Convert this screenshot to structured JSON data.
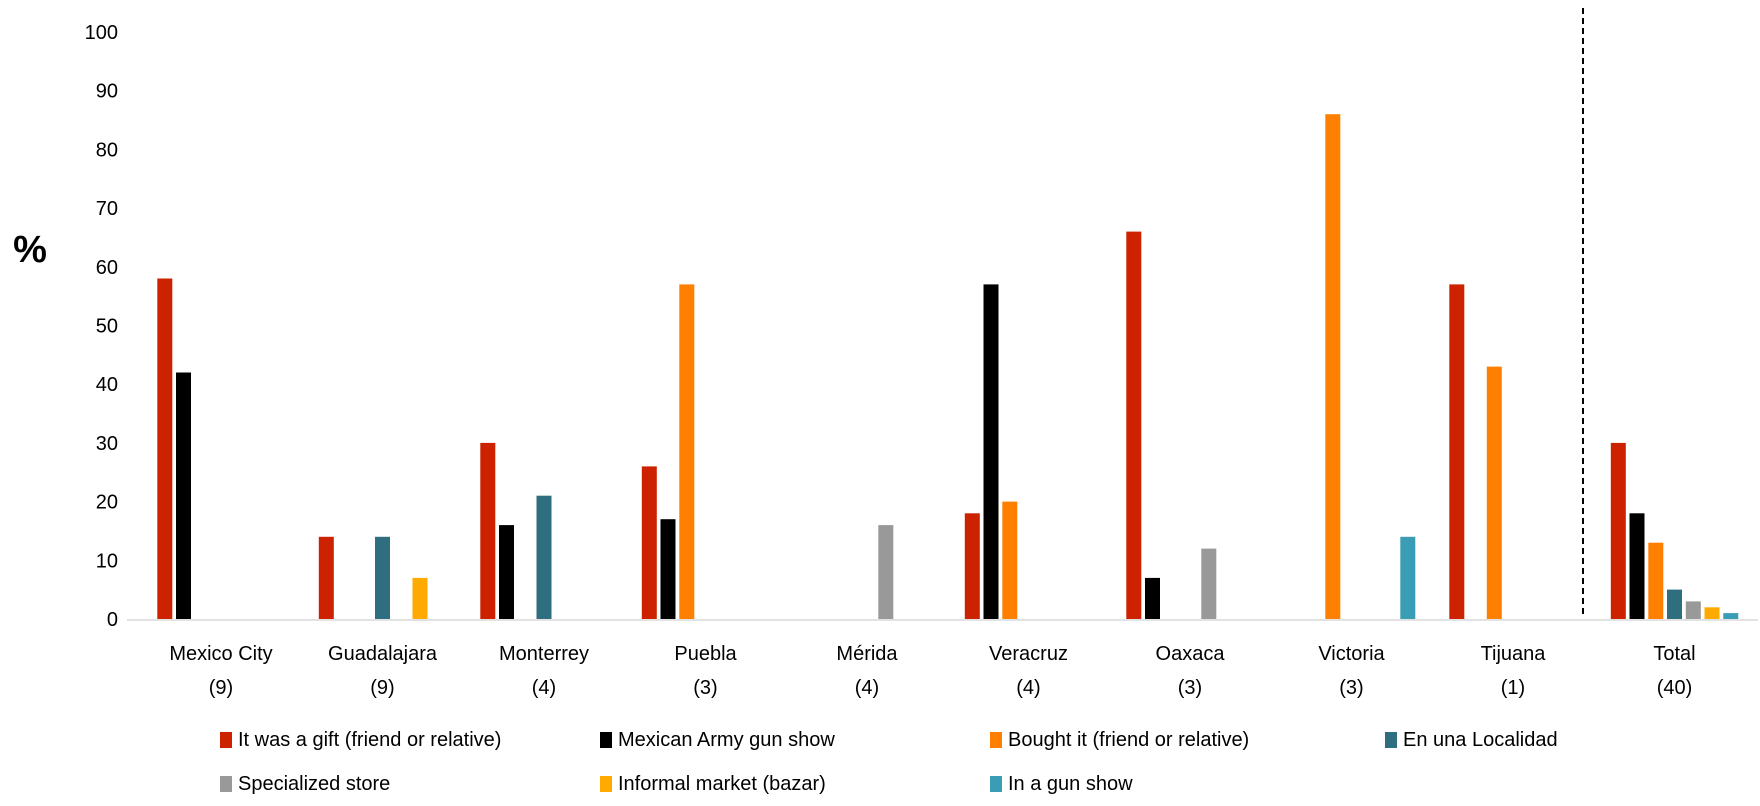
{
  "chart_data": {
    "type": "bar",
    "ylabel": "%",
    "ylim": [
      0,
      100
    ],
    "yticks": [
      "0",
      "10",
      "20",
      "30",
      "40",
      "50",
      "60",
      "70",
      "80",
      "90",
      "100"
    ],
    "categories": [
      {
        "name": "Mexico City",
        "n": "(9)"
      },
      {
        "name": "Guadalajara",
        "n": "(9)"
      },
      {
        "name": "Monterrey",
        "n": "(4)"
      },
      {
        "name": "Puebla",
        "n": "(3)"
      },
      {
        "name": "Mérida",
        "n": "(4)"
      },
      {
        "name": "Veracruz",
        "n": "(4)"
      },
      {
        "name": "Oaxaca",
        "n": "(3)"
      },
      {
        "name": "Victoria",
        "n": "(3)"
      },
      {
        "name": "Tijuana",
        "n": "(1)"
      },
      {
        "name": "Total",
        "n": "(40)"
      }
    ],
    "series": [
      {
        "name": "It was a gift (friend or relative)",
        "color": "#cc2200",
        "values": [
          58,
          14,
          30,
          26,
          0,
          18,
          66,
          0,
          57,
          30
        ]
      },
      {
        "name": "Mexican Army gun show",
        "color": "#000000",
        "values": [
          42,
          0,
          16,
          17,
          0,
          57,
          7,
          0,
          0,
          18
        ]
      },
      {
        "name": "Bought it (friend or relative)",
        "color": "#ff8000",
        "values": [
          0,
          0,
          0,
          57,
          0,
          20,
          0,
          86,
          43,
          13
        ]
      },
      {
        "name": "En una Localidad",
        "color": "#2e6e7e",
        "values": [
          0,
          14,
          21,
          0,
          0,
          0,
          0,
          0,
          0,
          5
        ]
      },
      {
        "name": "Specialized store",
        "color": "#999999",
        "values": [
          0,
          0,
          0,
          0,
          16,
          0,
          12,
          0,
          0,
          3
        ]
      },
      {
        "name": "Informal market (bazar)",
        "color": "#ffaa00",
        "values": [
          0,
          7,
          0,
          0,
          0,
          0,
          0,
          0,
          0,
          2
        ]
      },
      {
        "name": "In a gun show",
        "color": "#3a9db5",
        "values": [
          0,
          0,
          0,
          0,
          0,
          0,
          0,
          14,
          0,
          1
        ]
      }
    ],
    "separator_before_category": "Total",
    "legend_position": "bottom",
    "grid": false
  }
}
